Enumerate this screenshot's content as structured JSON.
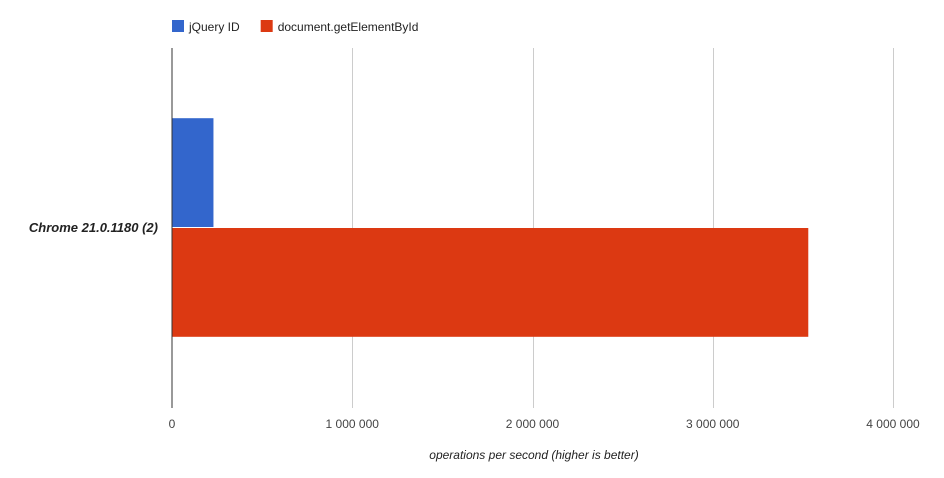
{
  "chart_data": {
    "type": "bar",
    "orientation": "horizontal",
    "categories": [
      "Chrome 21.0.1180 (2)"
    ],
    "series": [
      {
        "name": "jQuery ID",
        "color": "#3366cc",
        "values": [
          230000
        ]
      },
      {
        "name": "document.getElementById",
        "color": "#dc3912",
        "values": [
          3530000
        ]
      }
    ],
    "xlabel": "operations per second (higher is better)",
    "ylabel": "",
    "xlim": [
      0,
      4000000
    ],
    "xticks": [
      {
        "value": 0,
        "label": "0"
      },
      {
        "value": 1000000,
        "label": "1 000 000"
      },
      {
        "value": 2000000,
        "label": "2 000 000"
      },
      {
        "value": 3000000,
        "label": "3 000 000"
      },
      {
        "value": 4000000,
        "label": "4 000 000"
      }
    ],
    "grid": true,
    "legend_position": "top-left"
  }
}
